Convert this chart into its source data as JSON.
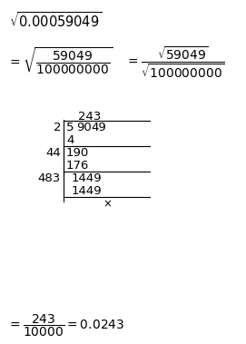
{
  "bg_color": "#ffffff",
  "fig_w": 2.71,
  "fig_h": 3.79,
  "dpi": 100,
  "fs_title": 10.5,
  "fs_eq": 10,
  "fs_div": 9.5,
  "long_div": {
    "quotient": "243",
    "divisor1": "2",
    "dividend1": [
      "5",
      "90",
      "49"
    ],
    "sub1": "4",
    "divisor2": "44",
    "remainder2": "190",
    "sub2": "176",
    "divisor3": "483",
    "remainder3": "1449",
    "sub3": "1449",
    "final_rem": "x"
  }
}
